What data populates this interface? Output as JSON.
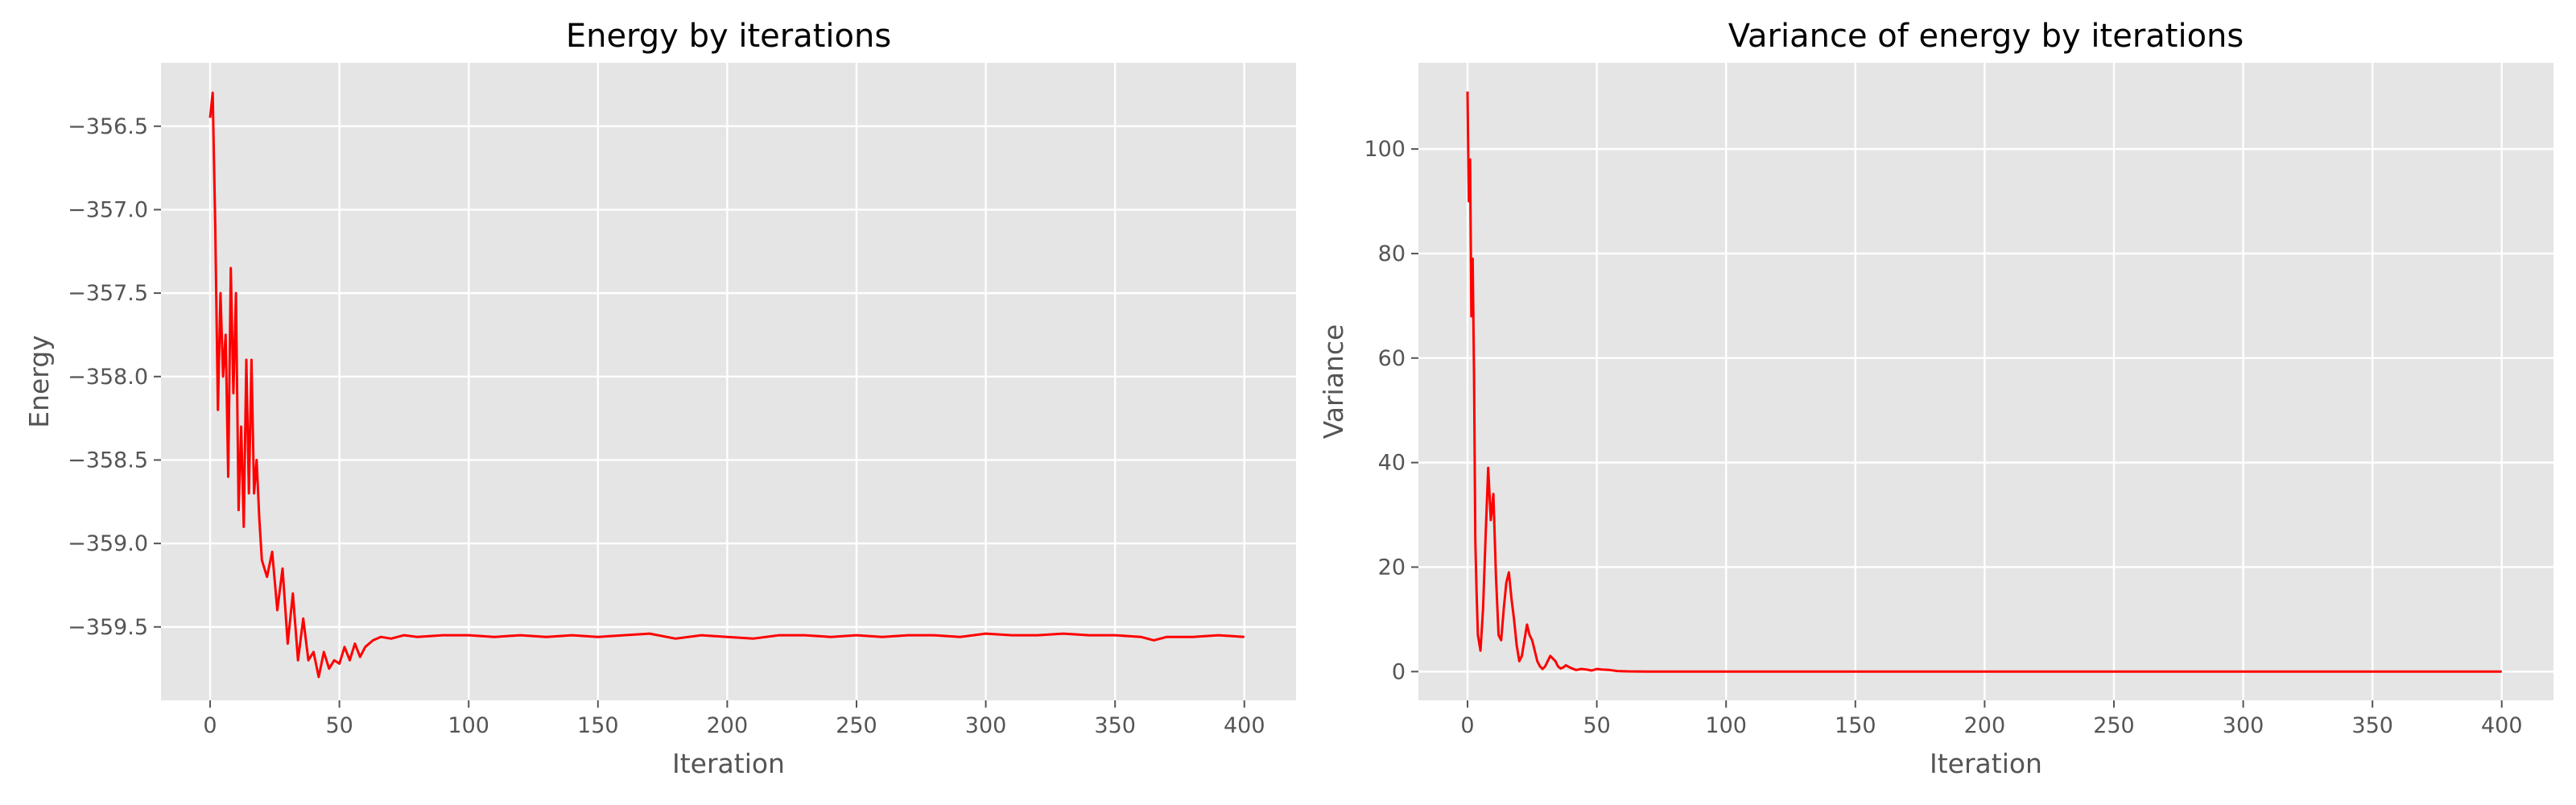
{
  "chart_data": [
    {
      "type": "line",
      "title": "Energy by iterations",
      "xlabel": "Iteration",
      "ylabel": "Energy",
      "xlim": [
        -19,
        420
      ],
      "ylim": [
        -359.94,
        -356.12
      ],
      "xticks": [
        0,
        50,
        100,
        150,
        200,
        250,
        300,
        350,
        400
      ],
      "xtick_labels": [
        "0",
        "50",
        "100",
        "150",
        "200",
        "250",
        "300",
        "350",
        "400"
      ],
      "yticks": [
        -359.5,
        -359.0,
        -358.5,
        -358.0,
        -357.5,
        -357.0,
        -356.5
      ],
      "ytick_labels": [
        "−359.5",
        "−359.0",
        "−358.5",
        "−358.0",
        "−357.5",
        "−357.0",
        "−356.5"
      ],
      "grid": true,
      "series": [
        {
          "color": "#ff0000",
          "x": [
            0,
            1,
            2,
            3,
            4,
            5,
            6,
            7,
            8,
            9,
            10,
            11,
            12,
            13,
            14,
            15,
            16,
            17,
            18,
            19,
            20,
            22,
            24,
            26,
            28,
            30,
            32,
            34,
            36,
            38,
            40,
            42,
            44,
            46,
            48,
            50,
            52,
            54,
            56,
            58,
            60,
            63,
            66,
            70,
            75,
            80,
            90,
            100,
            110,
            120,
            130,
            140,
            150,
            160,
            170,
            180,
            190,
            200,
            210,
            220,
            230,
            240,
            250,
            260,
            270,
            280,
            290,
            300,
            310,
            320,
            330,
            340,
            350,
            360,
            365,
            370,
            380,
            390,
            400
          ],
          "values": [
            -356.45,
            -356.3,
            -357.1,
            -358.2,
            -357.5,
            -358.0,
            -357.75,
            -358.6,
            -357.35,
            -358.1,
            -357.5,
            -358.8,
            -358.3,
            -358.9,
            -357.9,
            -358.7,
            -357.9,
            -358.7,
            -358.5,
            -358.85,
            -359.1,
            -359.2,
            -359.05,
            -359.4,
            -359.15,
            -359.6,
            -359.3,
            -359.7,
            -359.45,
            -359.7,
            -359.65,
            -359.8,
            -359.65,
            -359.75,
            -359.7,
            -359.72,
            -359.62,
            -359.7,
            -359.6,
            -359.68,
            -359.62,
            -359.58,
            -359.56,
            -359.57,
            -359.55,
            -359.56,
            -359.55,
            -359.55,
            -359.56,
            -359.55,
            -359.56,
            -359.55,
            -359.56,
            -359.55,
            -359.54,
            -359.57,
            -359.55,
            -359.56,
            -359.57,
            -359.55,
            -359.55,
            -359.56,
            -359.55,
            -359.56,
            -359.55,
            -359.55,
            -359.56,
            -359.54,
            -359.55,
            -359.55,
            -359.54,
            -359.55,
            -359.55,
            -359.56,
            -359.58,
            -359.56,
            -359.56,
            -359.55,
            -359.56
          ]
        }
      ]
    },
    {
      "type": "line",
      "title": "Variance of energy by iterations",
      "xlabel": "Iteration",
      "ylabel": "Variance",
      "xlim": [
        -19,
        420
      ],
      "ylim": [
        -5.5,
        116.5
      ],
      "xticks": [
        0,
        50,
        100,
        150,
        200,
        250,
        300,
        350,
        400
      ],
      "xtick_labels": [
        "0",
        "50",
        "100",
        "150",
        "200",
        "250",
        "300",
        "350",
        "400"
      ],
      "yticks": [
        0,
        20,
        40,
        60,
        80,
        100
      ],
      "ytick_labels": [
        "0",
        "20",
        "40",
        "60",
        "80",
        "100"
      ],
      "grid": true,
      "series": [
        {
          "color": "#ff0000",
          "x": [
            0,
            0.5,
            1,
            1.5,
            2,
            2.5,
            3,
            3.5,
            4,
            5,
            6,
            7,
            8,
            9,
            10,
            11,
            12,
            13,
            14,
            15,
            16,
            17,
            18,
            19,
            20,
            21,
            22,
            23,
            24,
            25,
            26,
            27,
            28,
            29,
            30,
            31,
            32,
            33,
            34,
            35,
            36,
            37,
            38,
            40,
            42,
            44,
            46,
            48,
            50,
            52,
            55,
            58,
            62,
            70,
            80,
            100,
            150,
            200,
            250,
            300,
            350,
            400
          ],
          "values": [
            111,
            90,
            98,
            68,
            79,
            57,
            25,
            15,
            7,
            4,
            12,
            26,
            39,
            29,
            34,
            18,
            7,
            6,
            12,
            17,
            19,
            14,
            10,
            5,
            2,
            3,
            6,
            9,
            7,
            6,
            4,
            2,
            1,
            0.5,
            1,
            2,
            3,
            2.5,
            2,
            1,
            0.6,
            0.8,
            1.2,
            0.7,
            0.3,
            0.5,
            0.4,
            0.2,
            0.5,
            0.4,
            0.3,
            0.1,
            0.05,
            0.02,
            0,
            0,
            0,
            0,
            0,
            0,
            0,
            0
          ]
        }
      ]
    }
  ]
}
